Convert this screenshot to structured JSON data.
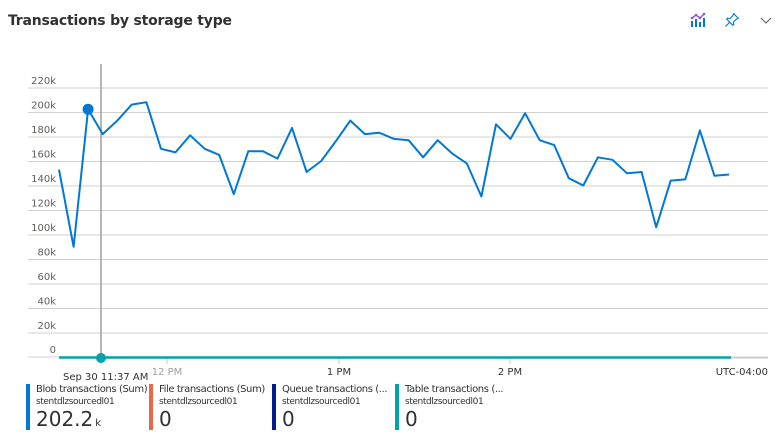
{
  "header": {
    "title": "Transactions by storage type",
    "icons": [
      "chart-metrics-icon",
      "pin-icon",
      "chevron-down-icon"
    ]
  },
  "chart_data": {
    "type": "line",
    "title": "Transactions by storage type",
    "xlabel": "",
    "ylabel": "",
    "ylim": [
      0,
      230000
    ],
    "y_ticks": [
      "0",
      "20k",
      "40k",
      "60k",
      "80k",
      "100k",
      "120k",
      "140k",
      "160k",
      "180k",
      "200k",
      "220k"
    ],
    "x_ticks": [
      "12 PM",
      "1 PM",
      "2 PM"
    ],
    "timezone": "UTC-04:00",
    "cursor": {
      "label": "Sep 30 11:37 AM",
      "index": 2
    },
    "grid": true,
    "legend_position": "bottom",
    "series": [
      {
        "name": "Blob transactions (Sum)",
        "resource": "stentdlzsourcedl01",
        "color": "#0078d4",
        "summary_value": "202.2",
        "summary_unit": "k",
        "values": [
          153000,
          90000,
          202200,
          182000,
          193000,
          206000,
          208000,
          170000,
          167000,
          181000,
          170000,
          165000,
          133000,
          168000,
          168000,
          162000,
          187000,
          151000,
          160000,
          176000,
          193000,
          182000,
          183000,
          178000,
          177000,
          163000,
          177000,
          166000,
          158000,
          131000,
          190000,
          178000,
          199000,
          177000,
          173000,
          146000,
          140000,
          163000,
          161000,
          150000,
          151000,
          106000,
          144000,
          145000,
          185000,
          148000,
          149000
        ]
      },
      {
        "name": "File transactions (Sum)",
        "resource": "stentdlzsourcedl01",
        "color": "#e8684a",
        "summary_value": "0",
        "summary_unit": "",
        "values": [
          0
        ]
      },
      {
        "name": "Queue transactions (...",
        "resource": "stentdlzsourcedl01",
        "color": "#001d8f",
        "summary_value": "0",
        "summary_unit": "",
        "values": [
          0
        ]
      },
      {
        "name": "Table transactions (...",
        "resource": "stentdlzsourcedl01",
        "color": "#00a3a8",
        "summary_value": "0",
        "summary_unit": "",
        "values": [
          0
        ]
      }
    ]
  }
}
